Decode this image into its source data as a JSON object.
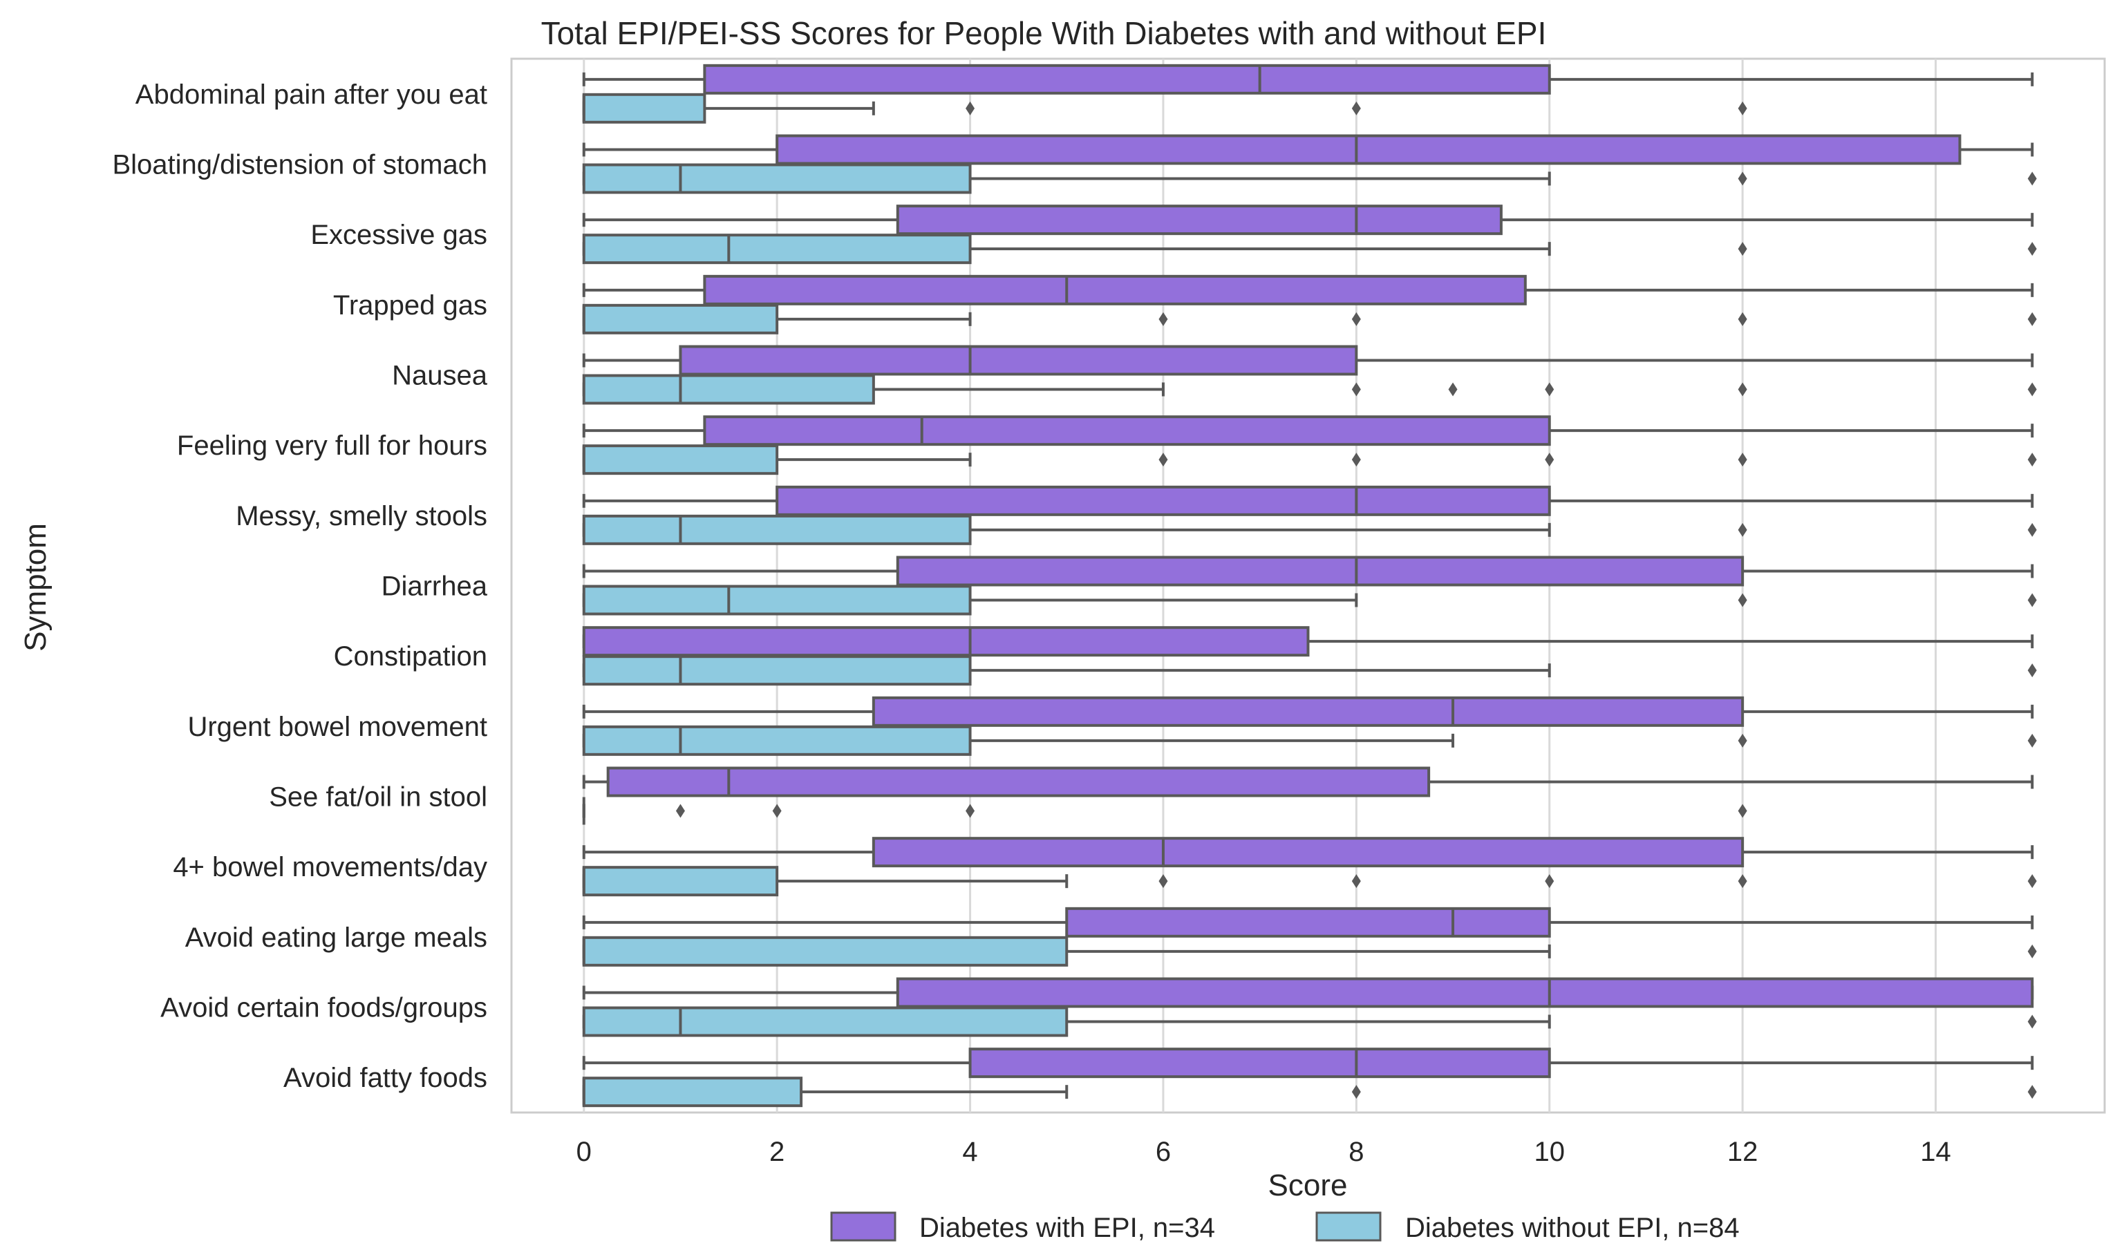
{
  "chart_data": {
    "type": "boxplot",
    "orientation": "horizontal",
    "title": "Total EPI/PEI-SS Scores for People With Diabetes with and without EPI",
    "xlabel": "Score",
    "ylabel": "Symptom",
    "xlim": [
      -0.75,
      15.75
    ],
    "xticks": [
      "0",
      "2",
      "4",
      "6",
      "8",
      "10",
      "12",
      "14"
    ],
    "grid": "vertical",
    "colors": {
      "with_epi": "#9370DB",
      "without_epi": "#8ECAE0",
      "lines": "#595959",
      "grid": "#d9d9d9",
      "frame": "#cccccc"
    },
    "legend": {
      "position": "bottom-center",
      "entries": [
        {
          "label": "Diabetes with EPI, n=34",
          "series": "with_epi"
        },
        {
          "label": "Diabetes without EPI, n=84",
          "series": "without_epi"
        }
      ]
    },
    "series_order": [
      "with_epi",
      "without_epi"
    ],
    "categories": [
      {
        "label": "Abdominal pain after you eat",
        "with_epi": {
          "wl": 0,
          "q1": 1.25,
          "med": 7,
          "q3": 10,
          "wh": 15,
          "outliers": []
        },
        "without_epi": {
          "wl": 0,
          "q1": 0,
          "med": 0,
          "q3": 1.25,
          "wh": 3,
          "outliers": [
            4,
            8,
            12
          ]
        }
      },
      {
        "label": "Bloating/distension of stomach",
        "with_epi": {
          "wl": 0,
          "q1": 2,
          "med": 8,
          "q3": 14.25,
          "wh": 15,
          "outliers": []
        },
        "without_epi": {
          "wl": 0,
          "q1": 0,
          "med": 1,
          "q3": 4,
          "wh": 10,
          "outliers": [
            12,
            15
          ]
        }
      },
      {
        "label": "Excessive gas",
        "with_epi": {
          "wl": 0,
          "q1": 3.25,
          "med": 8,
          "q3": 9.5,
          "wh": 15,
          "outliers": []
        },
        "without_epi": {
          "wl": 0,
          "q1": 0,
          "med": 1.5,
          "q3": 4,
          "wh": 10,
          "outliers": [
            12,
            15
          ]
        }
      },
      {
        "label": "Trapped gas",
        "with_epi": {
          "wl": 0,
          "q1": 1.25,
          "med": 5,
          "q3": 9.75,
          "wh": 15,
          "outliers": []
        },
        "without_epi": {
          "wl": 0,
          "q1": 0,
          "med": 0,
          "q3": 2,
          "wh": 4,
          "outliers": [
            6,
            8,
            12,
            15
          ]
        }
      },
      {
        "label": "Nausea",
        "with_epi": {
          "wl": 0,
          "q1": 1,
          "med": 4,
          "q3": 8,
          "wh": 15,
          "outliers": []
        },
        "without_epi": {
          "wl": 0,
          "q1": 0,
          "med": 1,
          "q3": 3,
          "wh": 6,
          "outliers": [
            8,
            9,
            10,
            12,
            15
          ]
        }
      },
      {
        "label": "Feeling very full for hours",
        "with_epi": {
          "wl": 0,
          "q1": 1.25,
          "med": 3.5,
          "q3": 10,
          "wh": 15,
          "outliers": []
        },
        "without_epi": {
          "wl": 0,
          "q1": 0,
          "med": 0,
          "q3": 2,
          "wh": 4,
          "outliers": [
            6,
            8,
            10,
            12,
            15
          ]
        }
      },
      {
        "label": "Messy, smelly stools",
        "with_epi": {
          "wl": 0,
          "q1": 2,
          "med": 8,
          "q3": 10,
          "wh": 15,
          "outliers": []
        },
        "without_epi": {
          "wl": 0,
          "q1": 0,
          "med": 1,
          "q3": 4,
          "wh": 10,
          "outliers": [
            12,
            15
          ]
        }
      },
      {
        "label": "Diarrhea",
        "with_epi": {
          "wl": 0,
          "q1": 3.25,
          "med": 8,
          "q3": 12,
          "wh": 15,
          "outliers": []
        },
        "without_epi": {
          "wl": 0,
          "q1": 0,
          "med": 1.5,
          "q3": 4,
          "wh": 8,
          "outliers": [
            12,
            15
          ]
        }
      },
      {
        "label": "Constipation",
        "with_epi": {
          "wl": 0,
          "q1": 0,
          "med": 4,
          "q3": 7.5,
          "wh": 15,
          "outliers": []
        },
        "without_epi": {
          "wl": 0,
          "q1": 0,
          "med": 1,
          "q3": 4,
          "wh": 10,
          "outliers": [
            15
          ]
        }
      },
      {
        "label": "Urgent bowel movement",
        "with_epi": {
          "wl": 0,
          "q1": 3,
          "med": 9,
          "q3": 12,
          "wh": 15,
          "outliers": []
        },
        "without_epi": {
          "wl": 0,
          "q1": 0,
          "med": 1,
          "q3": 4,
          "wh": 9,
          "outliers": [
            12,
            15
          ]
        }
      },
      {
        "label": "See fat/oil in stool",
        "with_epi": {
          "wl": 0,
          "q1": 0.25,
          "med": 1.5,
          "q3": 8.75,
          "wh": 15,
          "outliers": []
        },
        "without_epi": {
          "wl": 0,
          "q1": 0,
          "med": 0,
          "q3": 0,
          "wh": 0,
          "outliers": [
            1,
            2,
            4,
            12
          ]
        }
      },
      {
        "label": "4+ bowel movements/day",
        "with_epi": {
          "wl": 0,
          "q1": 3,
          "med": 6,
          "q3": 12,
          "wh": 15,
          "outliers": []
        },
        "without_epi": {
          "wl": 0,
          "q1": 0,
          "med": 0,
          "q3": 2,
          "wh": 5,
          "outliers": [
            6,
            8,
            10,
            12,
            15
          ]
        }
      },
      {
        "label": "Avoid eating large meals",
        "with_epi": {
          "wl": 0,
          "q1": 5,
          "med": 9,
          "q3": 10,
          "wh": 15,
          "outliers": []
        },
        "without_epi": {
          "wl": 0,
          "q1": 0,
          "med": 0,
          "q3": 5,
          "wh": 10,
          "outliers": [
            15
          ]
        }
      },
      {
        "label": "Avoid certain foods/groups",
        "with_epi": {
          "wl": 0,
          "q1": 3.25,
          "med": 10,
          "q3": 15,
          "wh": 15,
          "outliers": []
        },
        "without_epi": {
          "wl": 0,
          "q1": 0,
          "med": 1,
          "q3": 5,
          "wh": 10,
          "outliers": [
            15
          ]
        }
      },
      {
        "label": "Avoid fatty foods",
        "with_epi": {
          "wl": 0,
          "q1": 4,
          "med": 8,
          "q3": 10,
          "wh": 15,
          "outliers": []
        },
        "without_epi": {
          "wl": 0,
          "q1": 0,
          "med": 0,
          "q3": 2.25,
          "wh": 5,
          "outliers": [
            8,
            15
          ]
        }
      }
    ]
  }
}
